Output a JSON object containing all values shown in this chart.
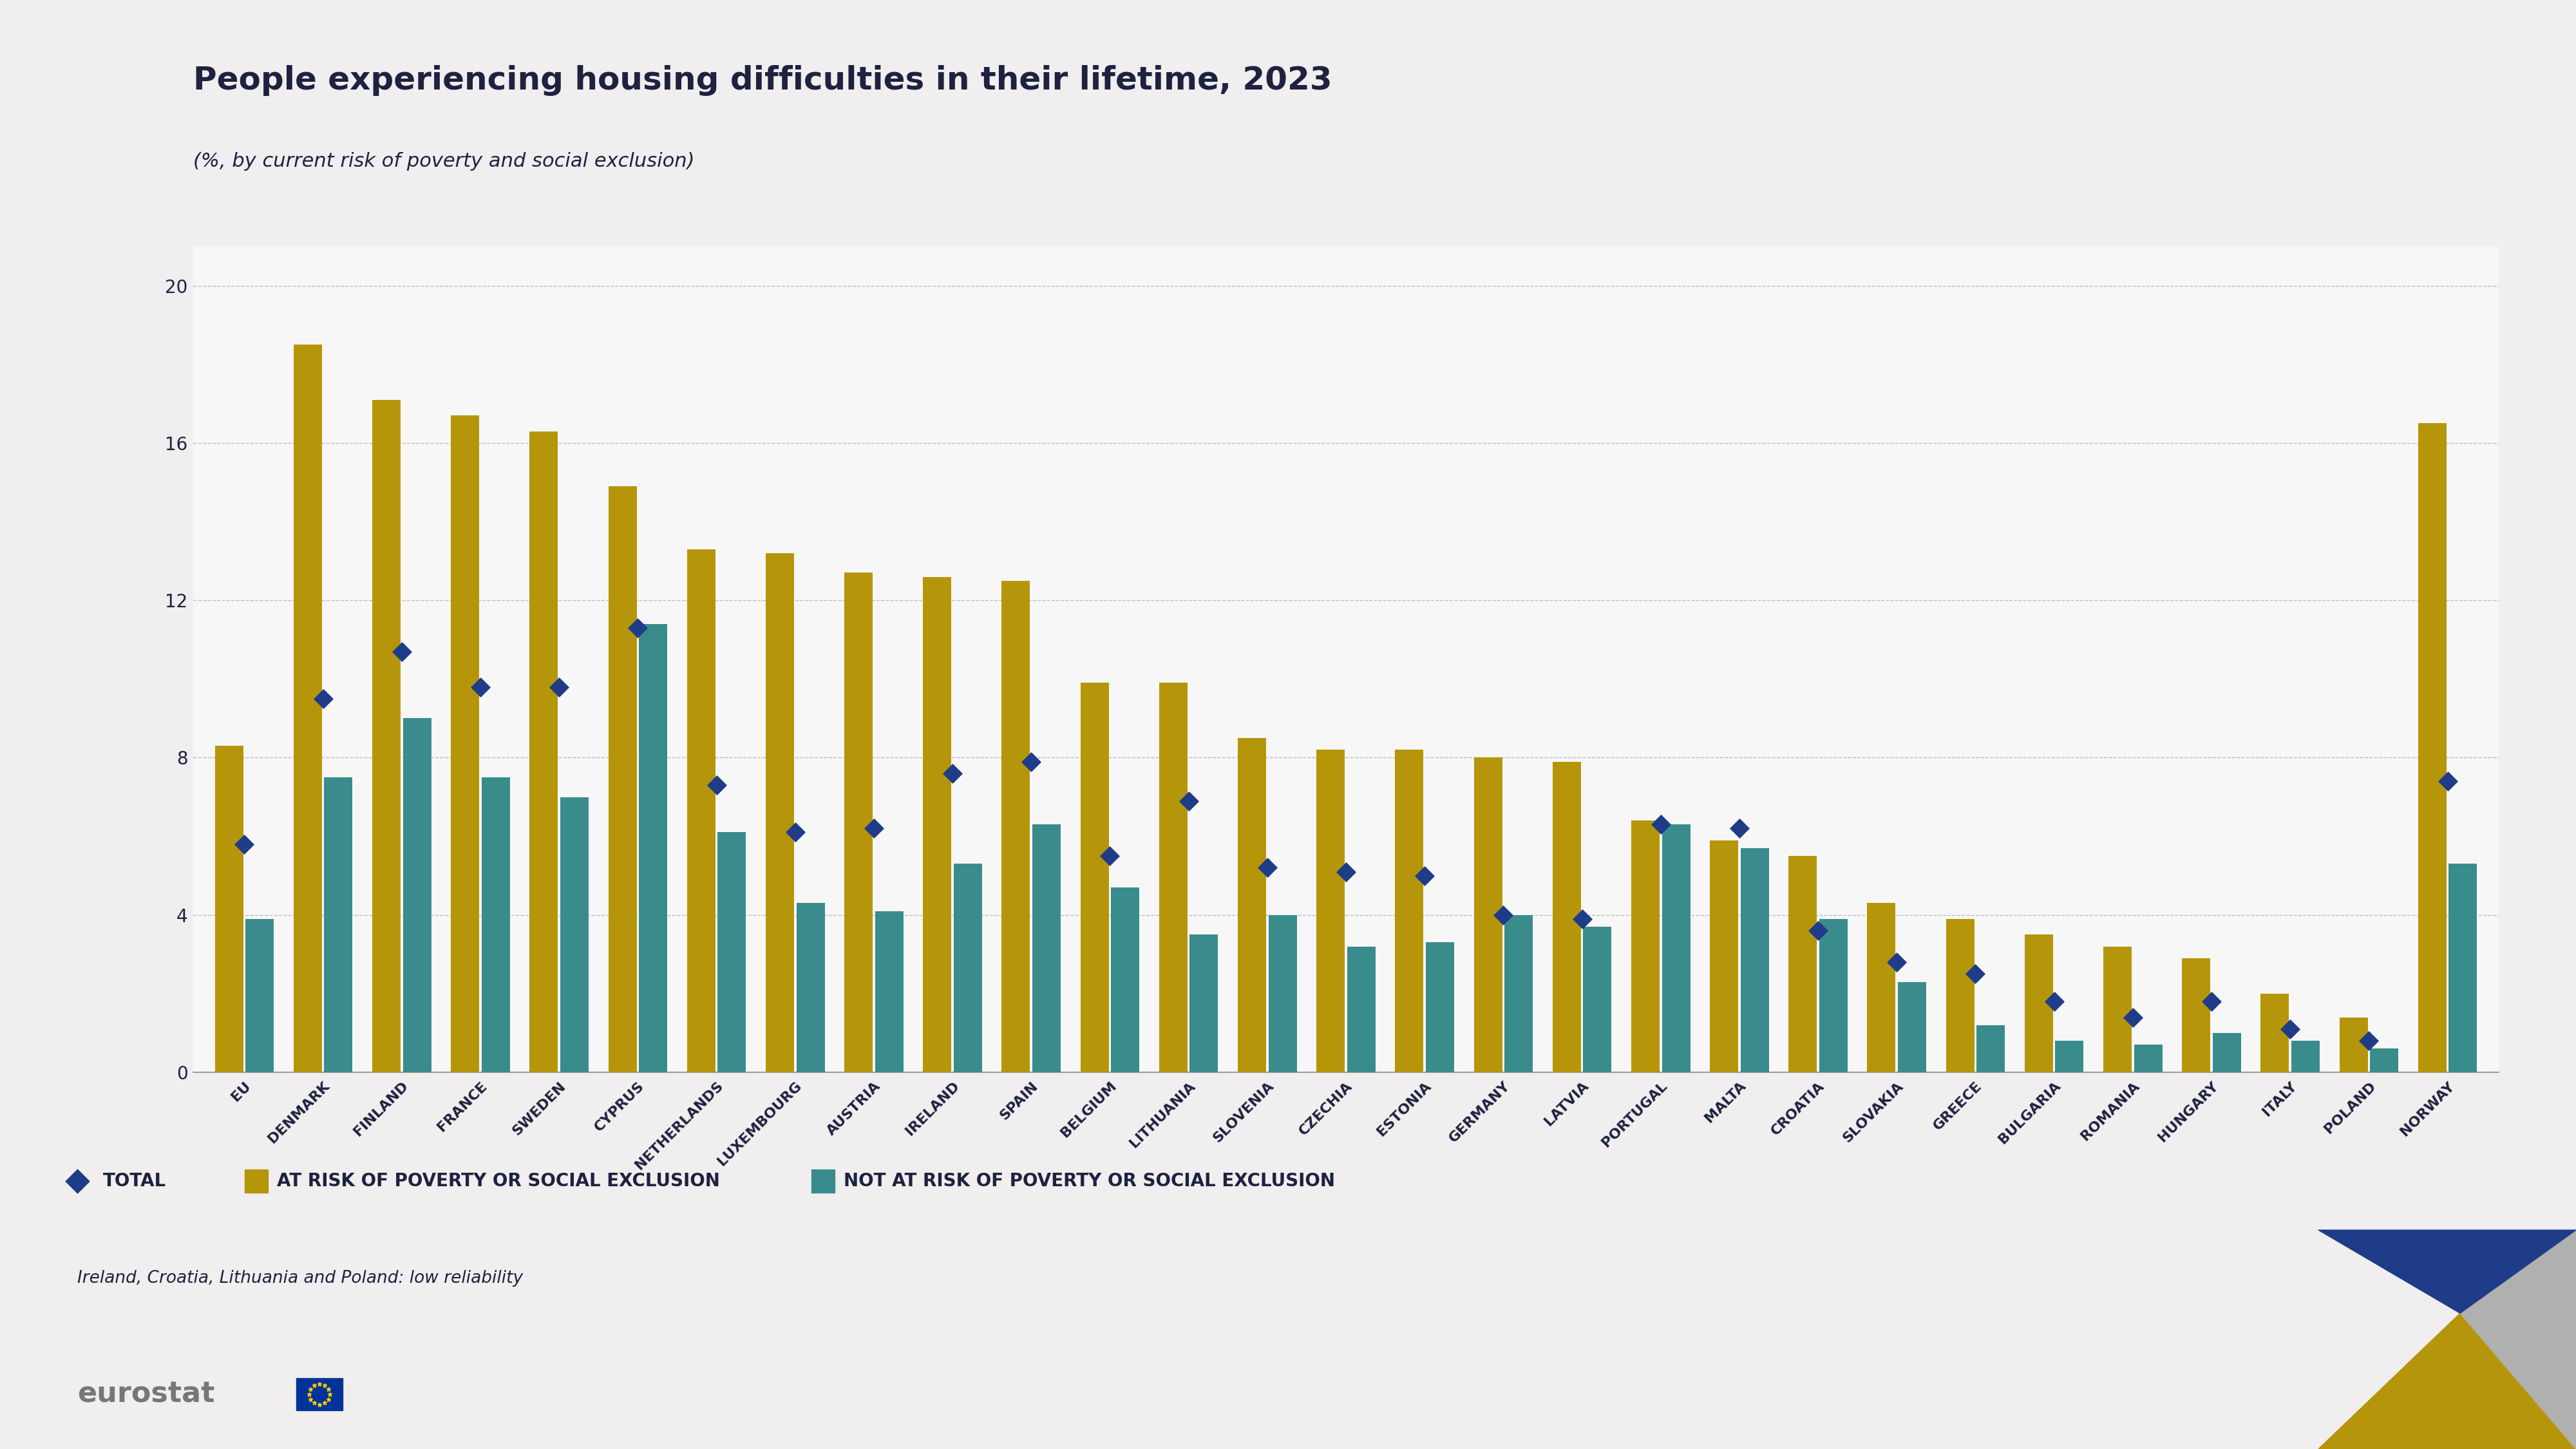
{
  "title": "People experiencing housing difficulties in their lifetime, 2023",
  "subtitle": "(%, by current risk of poverty and social exclusion)",
  "categories": [
    "EU",
    "DENMARK",
    "FINLAND",
    "FRANCE",
    "SWEDEN",
    "CYPRUS",
    "NETHERLANDS",
    "LUXEMBOURG",
    "AUSTRIA",
    "IRELAND",
    "SPAIN",
    "BELGIUM",
    "LITHUANIA",
    "SLOVENIA",
    "CZECHIA",
    "ESTONIA",
    "GERMANY",
    "LATVIA",
    "PORTUGAL",
    "MALTA",
    "CROATIA",
    "SLOVAKIA",
    "GREECE",
    "BULGARIA",
    "ROMANIA",
    "HUNGARY",
    "ITALY",
    "POLAND",
    "NORWAY"
  ],
  "at_risk": [
    8.3,
    18.5,
    17.1,
    16.7,
    16.3,
    14.9,
    13.3,
    13.2,
    12.7,
    12.6,
    12.5,
    9.9,
    9.9,
    8.5,
    8.2,
    8.2,
    8.0,
    7.9,
    6.4,
    5.9,
    5.5,
    4.3,
    3.9,
    3.5,
    3.2,
    2.9,
    2.0,
    1.4,
    16.5
  ],
  "not_at_risk": [
    3.9,
    7.5,
    9.0,
    7.5,
    7.0,
    11.4,
    6.1,
    4.3,
    4.1,
    5.3,
    6.3,
    4.7,
    3.5,
    4.0,
    3.2,
    3.3,
    4.0,
    3.7,
    6.3,
    5.7,
    3.9,
    2.3,
    1.2,
    0.8,
    0.7,
    1.0,
    0.8,
    0.6,
    5.3
  ],
  "total": [
    5.8,
    9.5,
    10.7,
    9.8,
    9.8,
    11.3,
    7.3,
    6.1,
    6.2,
    7.6,
    7.9,
    5.5,
    6.9,
    5.2,
    5.1,
    5.0,
    4.0,
    3.9,
    6.3,
    6.2,
    3.6,
    2.8,
    2.5,
    1.8,
    1.4,
    1.8,
    1.1,
    0.8,
    7.4
  ],
  "color_at_risk": "#b5960a",
  "color_not_at_risk": "#3a8c8c",
  "color_total": "#1f3c88",
  "bg_color": "#f0eeee",
  "chart_bg": "#f0eeee",
  "white_area": "#f8f7f7",
  "ylim": [
    0,
    21
  ],
  "yticks": [
    0,
    4,
    8,
    12,
    16,
    20
  ],
  "note": "Ireland, Croatia, Lithuania and Poland: low reliability",
  "legend_total": "TOTAL",
  "legend_at_risk": "AT RISK OF POVERTY OR SOCIAL EXCLUSION",
  "legend_not_at_risk": "NOT AT RISK OF POVERTY OR SOCIAL EXCLUSION",
  "title_color": "#1e2240",
  "tick_color": "#1e2240",
  "grid_color": "#bbbbbb",
  "title_fontsize": 36,
  "subtitle_fontsize": 22,
  "tick_fontsize": 20,
  "xtick_fontsize": 16,
  "legend_fontsize": 20,
  "note_fontsize": 19
}
